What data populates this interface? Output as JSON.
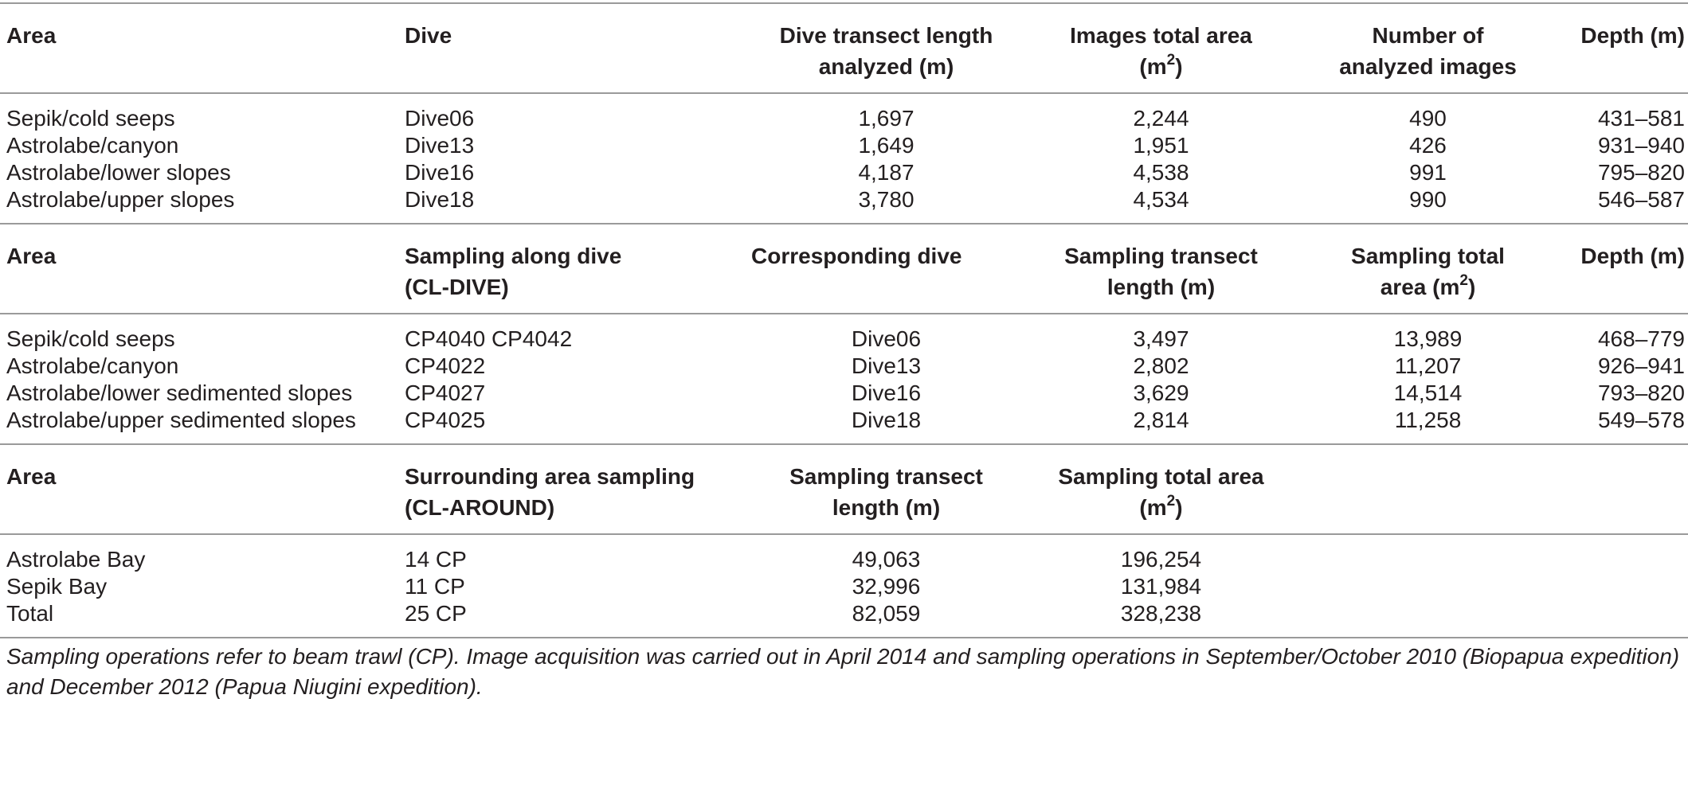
{
  "section1": {
    "headers": [
      "Area",
      "Dive",
      "Dive transect length analyzed (m)",
      "Images total area",
      "(m",
      "2",
      ")",
      "Number of analyzed images",
      "Depth (m)"
    ],
    "h": {
      "area": "Area",
      "dive": "Dive",
      "transect_l1": "Dive transect length",
      "transect_l2": "analyzed (m)",
      "img_area_l1": "Images total area",
      "img_area_l2_pre": "(m",
      "img_area_l2_sup": "2",
      "img_area_l2_post": ")",
      "num_img_l1": "Number of",
      "num_img_l2": "analyzed images",
      "depth": "Depth (m)"
    },
    "rows": [
      [
        "Sepik/cold seeps",
        "Dive06",
        "1,697",
        "2,244",
        "490",
        "431–581"
      ],
      [
        "Astrolabe/canyon",
        "Dive13",
        "1,649",
        "1,951",
        "426",
        "931–940"
      ],
      [
        "Astrolabe/lower slopes",
        "Dive16",
        "4,187",
        "4,538",
        "991",
        "795–820"
      ],
      [
        "Astrolabe/upper slopes",
        "Dive18",
        "3,780",
        "4,534",
        "990",
        "546–587"
      ]
    ]
  },
  "section2": {
    "h": {
      "area": "Area",
      "sampling_l1": "Sampling along dive",
      "sampling_l2": "(CL-DIVE)",
      "corr_dive": "Corresponding dive",
      "transect_l1": "Sampling transect",
      "transect_l2": "length (m)",
      "total_l1": "Sampling total",
      "total_l2_pre": "area (m",
      "total_l2_sup": "2",
      "total_l2_post": ")",
      "depth": "Depth (m)"
    },
    "rows": [
      [
        "Sepik/cold seeps",
        "CP4040 CP4042",
        "Dive06",
        "3,497",
        "13,989",
        "468–779"
      ],
      [
        "Astrolabe/canyon",
        "CP4022",
        "Dive13",
        "2,802",
        "11,207",
        "926–941"
      ],
      [
        "Astrolabe/lower sedimented slopes",
        "CP4027",
        "Dive16",
        "3,629",
        "14,514",
        "793–820"
      ],
      [
        "Astrolabe/upper sedimented slopes",
        "CP4025",
        "Dive18",
        "2,814",
        "11,258",
        "549–578"
      ]
    ]
  },
  "section3": {
    "h": {
      "area": "Area",
      "surr_l1": "Surrounding area sampling",
      "surr_l2": "(CL-AROUND)",
      "transect_l1": "Sampling transect",
      "transect_l2": "length (m)",
      "total_l1": "Sampling total area",
      "total_l2_pre": "(m",
      "total_l2_sup": "2",
      "total_l2_post": ")"
    },
    "rows": [
      [
        "Astrolabe Bay",
        "14 CP",
        "49,063",
        "196,254"
      ],
      [
        "Sepik Bay",
        "11 CP",
        "32,996",
        "131,984"
      ],
      [
        "Total",
        "25 CP",
        "82,059",
        "328,238"
      ]
    ]
  },
  "footnote": "Sampling operations refer to beam trawl (CP). Image acquisition was carried out in April 2014 and sampling operations in September/October 2010 (Biopapua expedition) and December 2012 (Papua Niugini expedition)."
}
